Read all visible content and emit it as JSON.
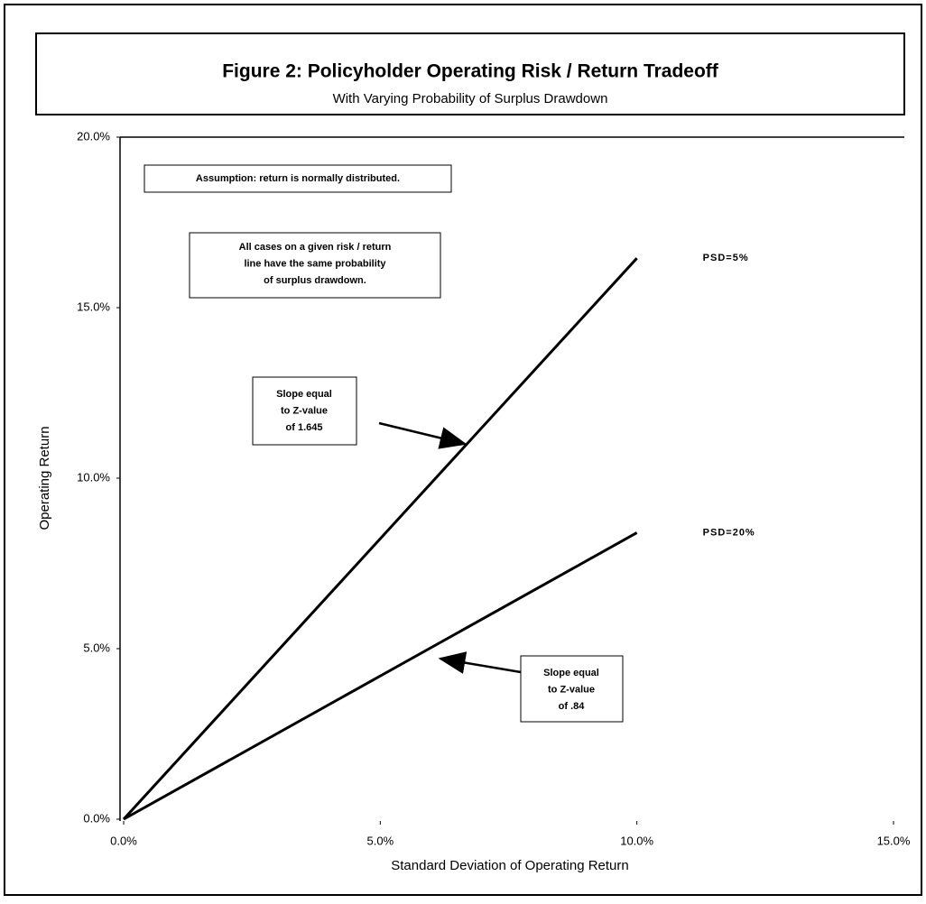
{
  "chart_data": {
    "type": "line",
    "title": "Figure 2:  Policyholder Operating Risk / Return Tradeoff",
    "subtitle": "With Varying Probability of Surplus Drawdown",
    "x_label": "Standard Deviation of Operating Return",
    "y_label": "Operating Return",
    "x": [
      0,
      10
    ],
    "series": [
      {
        "name": "PSD=5%",
        "color": "#000000",
        "values": [
          0,
          16.45
        ]
      },
      {
        "name": "PSD=20%",
        "color": "#000000",
        "values": [
          0,
          8.4
        ]
      }
    ],
    "xlim": [
      0,
      15
    ],
    "xticks": [
      {
        "value": 0,
        "label": "0.0%"
      },
      {
        "value": 5,
        "label": "5.0%"
      },
      {
        "value": 10,
        "label": "10.0%"
      },
      {
        "value": 15,
        "label": "15.0%"
      }
    ],
    "ylim": [
      0,
      20
    ],
    "yticks": [
      {
        "value": 0,
        "label": "0.0%"
      },
      {
        "value": 5,
        "label": "5.0%"
      },
      {
        "value": 10,
        "label": "10.0%"
      },
      {
        "value": 15,
        "label": "15.0%"
      },
      {
        "value": 20,
        "label": "20.0%"
      }
    ],
    "grid": false,
    "annotations": [
      {
        "lines": [
          "Assumption: return is normally distributed."
        ]
      },
      {
        "lines": [
          "All cases on a given risk / return",
          "line have the same probability",
          "of surplus drawdown."
        ]
      },
      {
        "lines": [
          "Slope equal",
          "to Z-value",
          "of 1.645"
        ]
      },
      {
        "lines": [
          "Slope equal",
          "to Z-value",
          "of .84"
        ]
      }
    ]
  }
}
